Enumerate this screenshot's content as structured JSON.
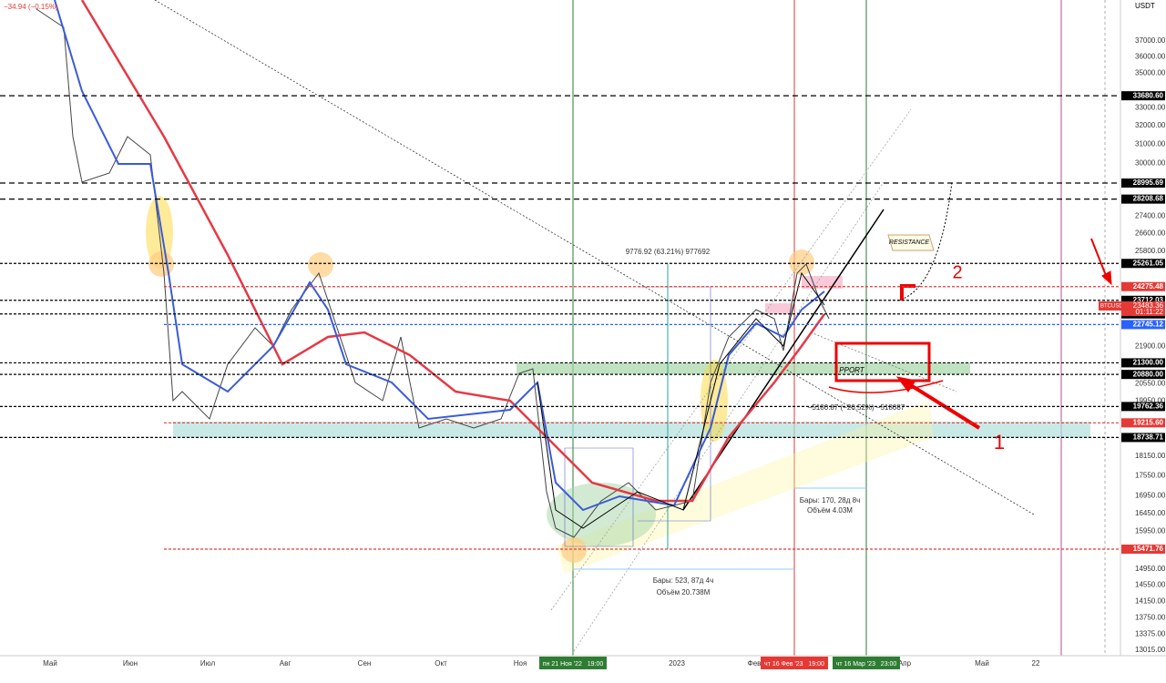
{
  "header": {
    "change": "−34.94 (−0.15%)",
    "currency": "USDT"
  },
  "price_axis": [
    "37000.00",
    "36000.00",
    "35000.00",
    "33000.00",
    "32000.00",
    "31000.00",
    "30000.00",
    "27400.00",
    "26600.00",
    "25800.00",
    "21900.00",
    "20550.00",
    "19950.00",
    "18150.00",
    "17550.00",
    "16950.00",
    "16450.00",
    "15950.00",
    "14950.00",
    "14550.00",
    "14150.00",
    "13750.00",
    "13375.00",
    "13015.00"
  ],
  "price_tags": [
    {
      "label": "33680.60",
      "style": "black"
    },
    {
      "label": "28995.69",
      "style": "black"
    },
    {
      "label": "28208.68",
      "style": "black"
    },
    {
      "label": "25261.05",
      "style": "black"
    },
    {
      "label": "24275.48",
      "style": "red"
    },
    {
      "label": "23712.03",
      "style": "black"
    },
    {
      "label": "23164.00",
      "style": "black"
    },
    {
      "label": "22745.12",
      "style": "blue"
    },
    {
      "label": "21300.00",
      "style": "black"
    },
    {
      "label": "20880.00",
      "style": "black"
    },
    {
      "label": "19762.36",
      "style": "black"
    },
    {
      "label": "19215.60",
      "style": "red"
    },
    {
      "label": "18738.71",
      "style": "black"
    },
    {
      "label": "15471.76",
      "style": "red"
    }
  ],
  "symbol_tag": {
    "symbol": "BTCUSDT",
    "price": "23483.36",
    "countdown": "01:11:22"
  },
  "time_axis": [
    "Май",
    "Июн",
    "Июл",
    "Авг",
    "Сен",
    "Окт",
    "Ноя",
    "2023",
    "Фев",
    "Апр",
    "Май",
    "22"
  ],
  "time_tags": [
    "пн 21 Ноя '22   19:00",
    "чт 16 Фев '23   19:00",
    "чт 16 Мар '23   23:00"
  ],
  "annotations": {
    "range_up": "9776.92 (63.21%) 977692",
    "resistance": "RESISTANCE",
    "support": "PPORT",
    "range_down": "−5180.87 (−20.52%) −518087",
    "bars_1": "Бары: 170, 28д 8ч",
    "volume_1": "Объём 4.03M",
    "bars_2": "Бары: 523, 87д 4ч",
    "volume_2": "Объём 20.738M",
    "mark_1": "1",
    "mark_2": "2"
  }
}
